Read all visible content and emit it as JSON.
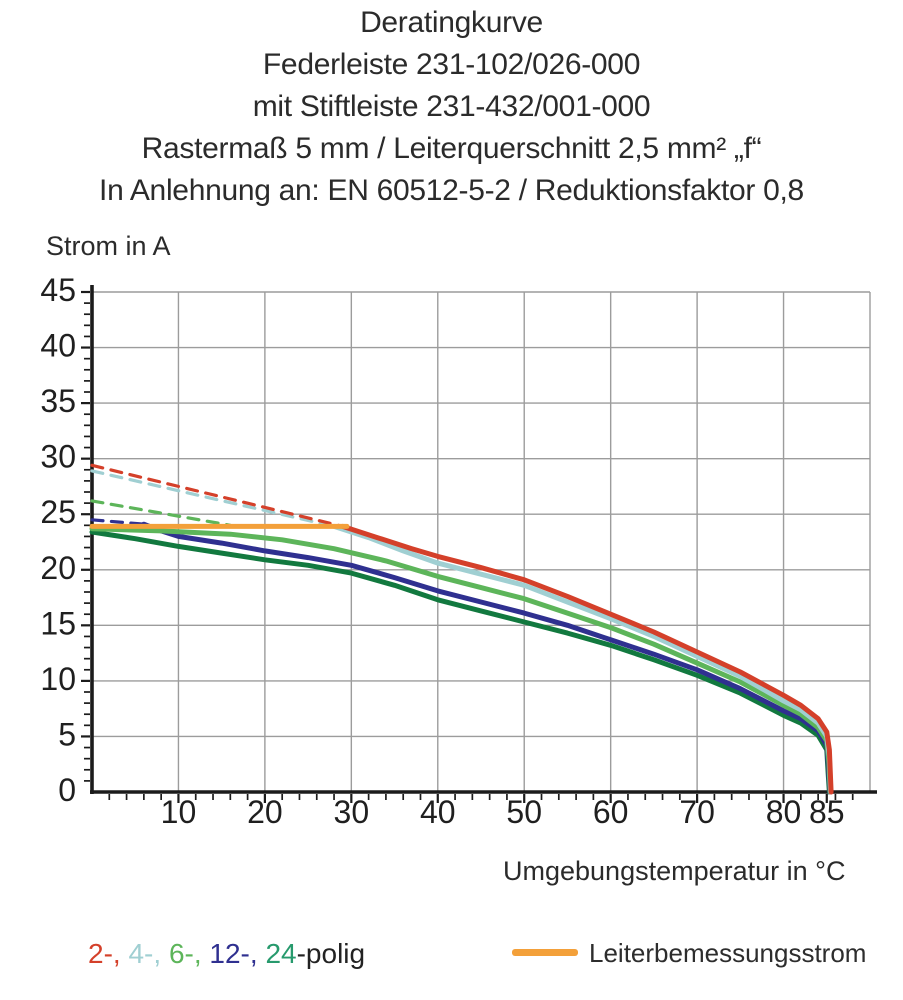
{
  "title_block": {
    "lines": [
      "Deratingkurve",
      "Federleiste 231-102/026-000",
      "mit Stiftleiste 231-432/001-000",
      "Rastermaß 5 mm / Leiterquerschnitt 2,5 mm² „f“",
      "In Anlehnung an: EN 60512-5-2 / Reduktionsfaktor 0,8"
    ]
  },
  "chart_data": {
    "type": "line",
    "title": "Deratingkurve Federleiste 231-102/026-000 mit Stiftleiste 231-432/001-000",
    "xlabel": "Umgebungstemperatur in °C",
    "ylabel": "Strom in A",
    "xlim": [
      0,
      90
    ],
    "ylim": [
      0,
      45
    ],
    "x_tick_labels": [
      10,
      20,
      30,
      40,
      50,
      60,
      70,
      80,
      85
    ],
    "y_tick_labels": [
      0,
      5,
      10,
      15,
      20,
      25,
      30,
      35,
      40,
      45
    ],
    "x_gridline_step": 10,
    "y_gridline_step": 5,
    "x_minor_tick_step": 2,
    "y_minor_tick_step": 1,
    "grid": true,
    "legend_position": "bottom",
    "axis_color": "#1b1b1b",
    "grid_color": "#9c9c9c",
    "note": "dashed segments lie above the rated-current (Leiterbemessungsstrom) line, solid below",
    "series": [
      {
        "name": "24-polig",
        "color": "#12793f",
        "dashed_points": [],
        "solid_points": [
          [
            0,
            23.4
          ],
          [
            5,
            22.8
          ],
          [
            10,
            22.1
          ],
          [
            15,
            21.5
          ],
          [
            20,
            20.9
          ],
          [
            25,
            20.4
          ],
          [
            30,
            19.7
          ],
          [
            35,
            18.6
          ],
          [
            40,
            17.3
          ],
          [
            45,
            16.3
          ],
          [
            50,
            15.3
          ],
          [
            55,
            14.3
          ],
          [
            60,
            13.2
          ],
          [
            65,
            11.9
          ],
          [
            70,
            10.5
          ],
          [
            75,
            8.9
          ],
          [
            80,
            6.9
          ],
          [
            82,
            6.2
          ],
          [
            84,
            5.1
          ],
          [
            85,
            3.8
          ],
          [
            85.15,
            1.8
          ],
          [
            85.3,
            0
          ]
        ]
      },
      {
        "name": "12-polig",
        "color": "#2f3090",
        "dashed_points": [
          [
            0,
            24.5
          ],
          [
            6,
            24.1
          ]
        ],
        "solid_points": [
          [
            6,
            24.1
          ],
          [
            8,
            23.5
          ],
          [
            10,
            23.0
          ],
          [
            15,
            22.4
          ],
          [
            20,
            21.7
          ],
          [
            25,
            21.1
          ],
          [
            30,
            20.4
          ],
          [
            35,
            19.3
          ],
          [
            40,
            18.1
          ],
          [
            45,
            17.1
          ],
          [
            50,
            16.1
          ],
          [
            55,
            15.0
          ],
          [
            60,
            13.7
          ],
          [
            65,
            12.4
          ],
          [
            70,
            11.0
          ],
          [
            75,
            9.3
          ],
          [
            80,
            7.3
          ],
          [
            82,
            6.6
          ],
          [
            84,
            5.5
          ],
          [
            85,
            4.2
          ],
          [
            85.2,
            2.2
          ],
          [
            85.35,
            0
          ]
        ]
      },
      {
        "name": "6-polig",
        "color": "#5db55a",
        "dashed_points": [
          [
            0,
            26.2
          ],
          [
            16,
            24.0
          ]
        ],
        "solid_points": [
          [
            0,
            23.7
          ],
          [
            8,
            23.5
          ],
          [
            16,
            23.2
          ],
          [
            22,
            22.7
          ],
          [
            28,
            21.9
          ],
          [
            34,
            20.8
          ],
          [
            40,
            19.4
          ],
          [
            45,
            18.4
          ],
          [
            50,
            17.4
          ],
          [
            55,
            16.1
          ],
          [
            60,
            14.8
          ],
          [
            65,
            13.3
          ],
          [
            70,
            11.6
          ],
          [
            75,
            9.9
          ],
          [
            80,
            7.8
          ],
          [
            82,
            7.0
          ],
          [
            84,
            5.8
          ],
          [
            85,
            4.6
          ],
          [
            85.25,
            2.6
          ],
          [
            85.4,
            0
          ]
        ]
      },
      {
        "name": "4-polig",
        "color": "#a0cfd2",
        "dashed_points": [
          [
            0,
            28.9
          ],
          [
            28,
            23.9
          ]
        ],
        "solid_points": [
          [
            28,
            23.9
          ],
          [
            32,
            22.9
          ],
          [
            36,
            21.7
          ],
          [
            40,
            20.6
          ],
          [
            45,
            19.6
          ],
          [
            50,
            18.6
          ],
          [
            55,
            17.1
          ],
          [
            60,
            15.6
          ],
          [
            65,
            14.0
          ],
          [
            70,
            12.2
          ],
          [
            75,
            10.4
          ],
          [
            80,
            8.2
          ],
          [
            82,
            7.4
          ],
          [
            84,
            6.2
          ],
          [
            85,
            5.0
          ],
          [
            85.3,
            3.2
          ],
          [
            85.45,
            0
          ]
        ]
      },
      {
        "name": "2-polig",
        "color": "#d4402a",
        "dashed_points": [
          [
            0,
            29.4
          ],
          [
            29,
            23.9
          ]
        ],
        "solid_points": [
          [
            29,
            23.9
          ],
          [
            33,
            22.9
          ],
          [
            37,
            21.9
          ],
          [
            40,
            21.2
          ],
          [
            45,
            20.2
          ],
          [
            50,
            19.1
          ],
          [
            55,
            17.6
          ],
          [
            60,
            16.0
          ],
          [
            65,
            14.4
          ],
          [
            70,
            12.6
          ],
          [
            75,
            10.8
          ],
          [
            80,
            8.7
          ],
          [
            82,
            7.8
          ],
          [
            84,
            6.6
          ],
          [
            85,
            5.4
          ],
          [
            85.3,
            3.8
          ],
          [
            85.5,
            0
          ]
        ]
      },
      {
        "name": "Leiterbemessungsstrom",
        "color": "#f3a03a",
        "dashed_points": [],
        "solid_points": [
          [
            0,
            23.9
          ],
          [
            29.5,
            23.9
          ]
        ]
      }
    ]
  },
  "legend": {
    "polig_parts": [
      {
        "text": "2-, ",
        "color": "#d4402a"
      },
      {
        "text": "4-, ",
        "color": "#a0cfd2"
      },
      {
        "text": "6-, ",
        "color": "#5db55a"
      },
      {
        "text": "12-, ",
        "color": "#2f3090"
      },
      {
        "text": "24",
        "color": "#279a6d"
      }
    ],
    "polig_suffix": "-polig",
    "rated_current_label": "Leiterbemessungsstrom",
    "rated_current_color": "#f3a03a"
  }
}
